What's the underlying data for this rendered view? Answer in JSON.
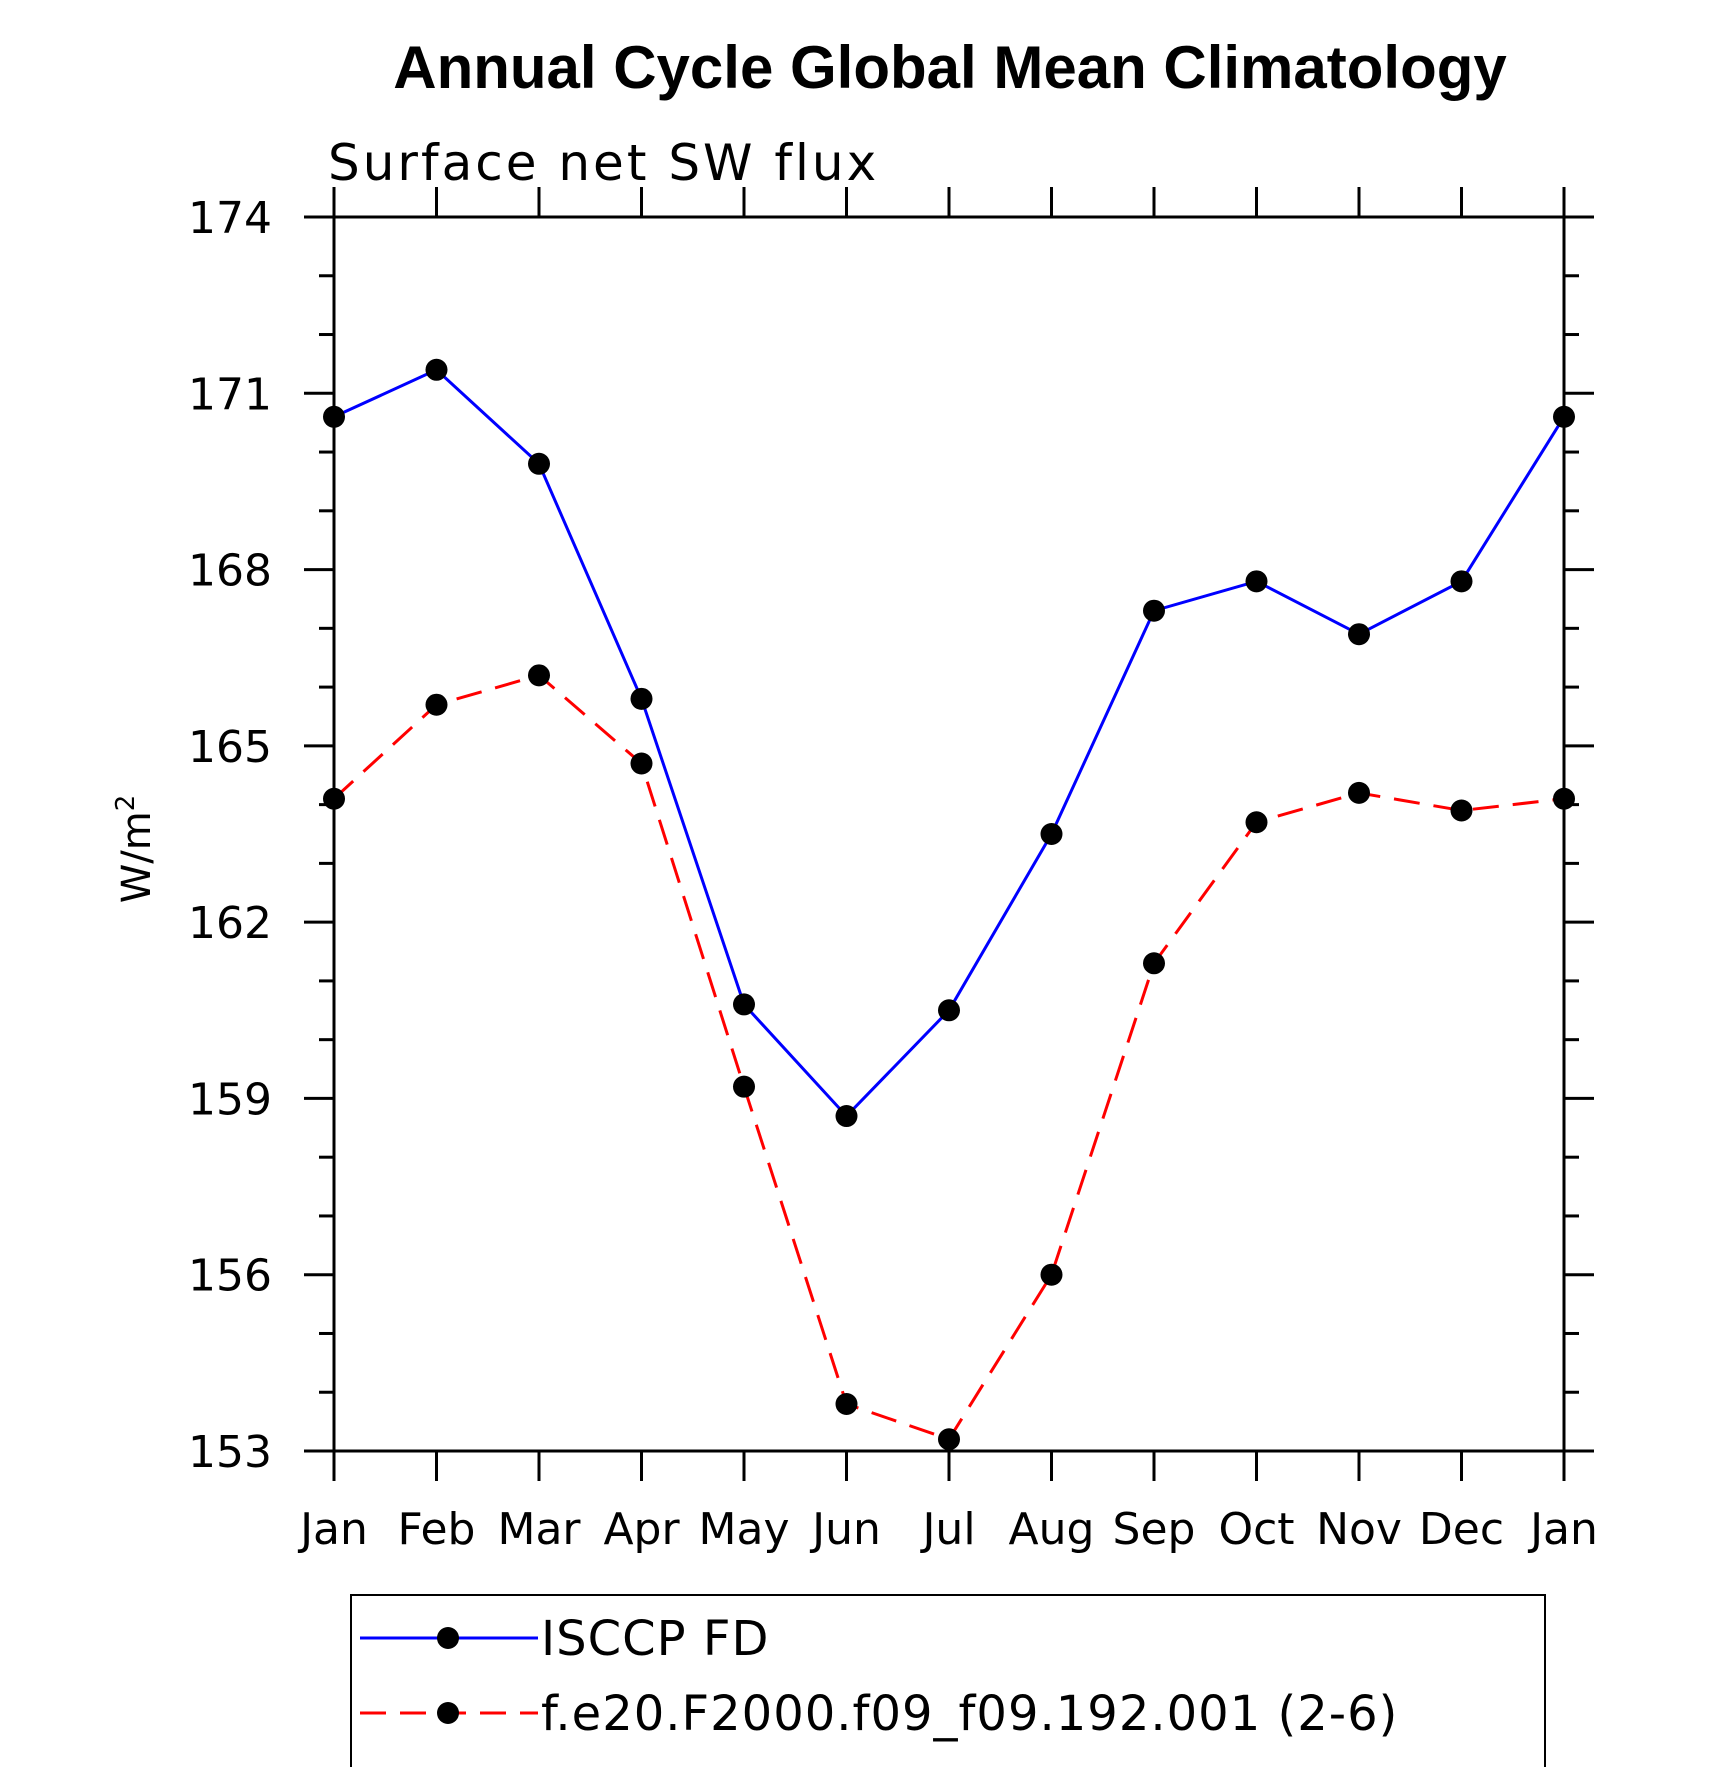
{
  "chart_data": {
    "type": "line",
    "title": "Annual Cycle Global Mean Climatology",
    "subtitle": "Surface net SW flux",
    "ylabel": "W/m",
    "ylabel_superscript": "2",
    "categories": [
      "Jan",
      "Feb",
      "Mar",
      "Apr",
      "May",
      "Jun",
      "Jul",
      "Aug",
      "Sep",
      "Oct",
      "Nov",
      "Dec",
      "Jan"
    ],
    "ylim": [
      153,
      174
    ],
    "yticks": [
      153,
      156,
      159,
      162,
      165,
      168,
      171,
      174
    ],
    "yticks_labels": [
      "153",
      "156",
      "159",
      "162",
      "165",
      "168",
      "171",
      "174"
    ],
    "grid": false,
    "legend_position": "bottom",
    "series": [
      {
        "name": "ISCCP FD",
        "color": "#0000ff",
        "line_style": "solid",
        "marker": "filled-circle",
        "values": [
          170.6,
          171.4,
          169.8,
          165.8,
          160.6,
          158.7,
          160.5,
          163.5,
          167.3,
          167.8,
          166.9,
          167.8,
          170.6
        ]
      },
      {
        "name": "f.e20.F2000.f09_f09.192.001 (2-6)",
        "color": "#ff0000",
        "line_style": "dashed",
        "marker": "filled-circle",
        "values": [
          164.1,
          165.7,
          166.2,
          164.7,
          159.2,
          153.8,
          153.2,
          156.0,
          161.3,
          163.7,
          164.2,
          163.9,
          164.1
        ]
      }
    ]
  }
}
